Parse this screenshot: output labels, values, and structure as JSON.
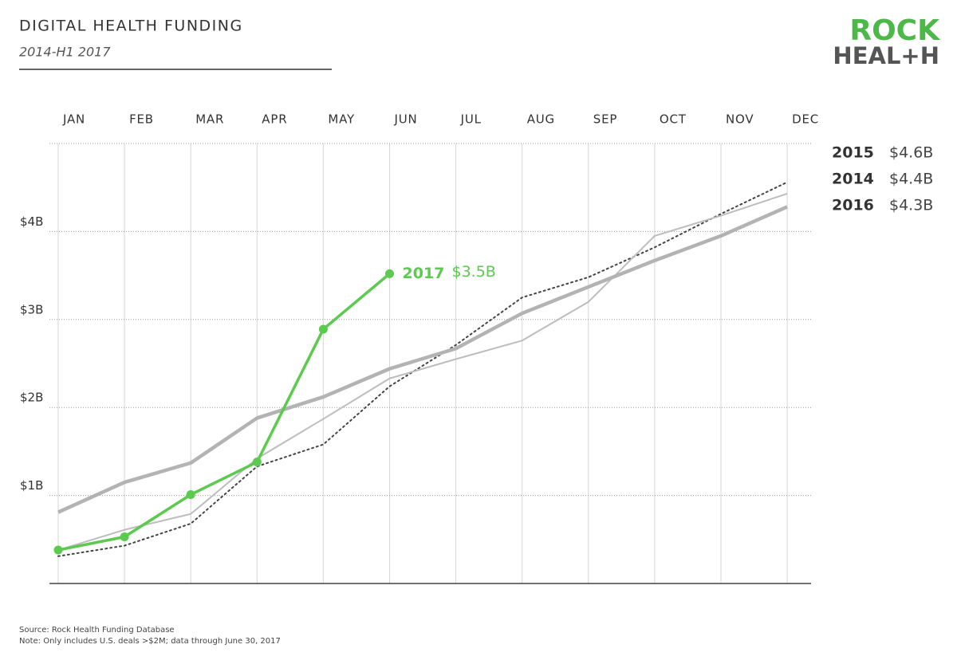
{
  "chart_data": {
    "type": "line",
    "title": "DIGITAL HEALTH FUNDING",
    "subtitle": "2014-H1 2017",
    "logo": {
      "top": "ROCK",
      "bottom": "HEAL+H"
    },
    "categories": [
      "JAN",
      "FEB",
      "MAR",
      "APR",
      "MAY",
      "JUN",
      "JUL",
      "AUG",
      "SEP",
      "OCT",
      "NOV",
      "DEC"
    ],
    "ylim": [
      0,
      5
    ],
    "yticks": [
      {
        "value": 1,
        "label": "$1B"
      },
      {
        "value": 2,
        "label": "$2B"
      },
      {
        "value": 3,
        "label": "$3B"
      },
      {
        "value": 4,
        "label": "$4B"
      }
    ],
    "grid": true,
    "series": [
      {
        "name": "2015",
        "color": "#444444",
        "style": "dotted",
        "values": [
          0.31,
          0.43,
          0.68,
          1.33,
          1.58,
          2.24,
          2.71,
          3.25,
          3.48,
          3.82,
          4.2,
          4.56
        ],
        "value_labels": [
          null,
          null,
          null,
          null,
          null,
          null,
          null,
          null,
          null,
          null,
          null,
          "$4.6B"
        ]
      },
      {
        "name": "2014",
        "color": "#bdbdbd",
        "style": "thin",
        "values": [
          0.38,
          0.61,
          0.79,
          1.42,
          1.87,
          2.33,
          2.55,
          2.76,
          3.2,
          3.95,
          4.18,
          4.43
        ],
        "value_labels": [
          null,
          null,
          null,
          null,
          null,
          null,
          null,
          null,
          null,
          null,
          null,
          "$4.4B"
        ]
      },
      {
        "name": "2016",
        "color": "#b3b3b3",
        "style": "thick",
        "values": [
          0.81,
          1.15,
          1.37,
          1.88,
          2.12,
          2.44,
          2.67,
          3.07,
          3.37,
          3.67,
          3.95,
          4.28
        ],
        "value_labels": [
          null,
          null,
          null,
          null,
          null,
          null,
          null,
          null,
          null,
          null,
          null,
          "$4.3B"
        ]
      },
      {
        "name": "2017",
        "color": "#5cc94f",
        "style": "markers",
        "values": [
          0.38,
          0.53,
          1.01,
          1.38,
          2.89,
          3.52,
          null,
          null,
          null,
          null,
          null,
          null
        ],
        "value_labels": [
          null,
          null,
          null,
          null,
          null,
          "$3.5B",
          null,
          null,
          null,
          null,
          null,
          null
        ]
      }
    ],
    "notes": [
      "Source: Rock Health Funding Database",
      "Note: Only includes U.S. deals >$2M; data through June 30, 2017"
    ]
  }
}
